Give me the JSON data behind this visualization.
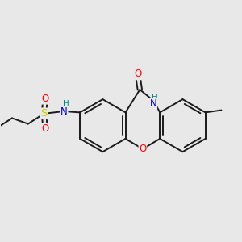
{
  "bg_color": "#e8e8e8",
  "bond_color": "#1a1a1a",
  "bond_width": 1.4,
  "atom_colors": {
    "O": "#ff0000",
    "N": "#0000cc",
    "S": "#cccc00",
    "H": "#008888",
    "C": "#1a1a1a"
  },
  "font_size": 8.5,
  "figsize": [
    3.0,
    3.0
  ],
  "dpi": 100,
  "xlim": [
    -2.3,
    1.9
  ],
  "ylim": [
    -1.3,
    1.3
  ]
}
